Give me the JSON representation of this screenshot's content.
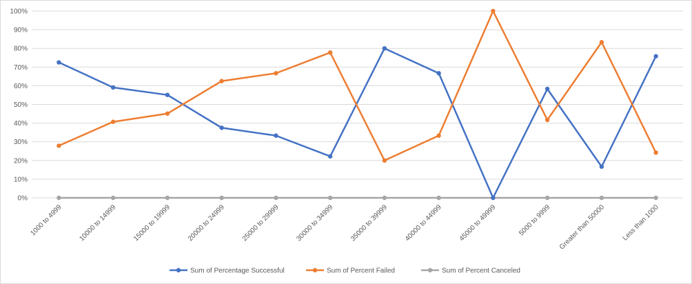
{
  "chart_data": {
    "type": "line",
    "categories": [
      "1000 to 4999",
      "10000 to 14999",
      "15000 to 19999",
      "20000 to 24999",
      "25000 to 29999",
      "30000 to 34999",
      "35000 to 39999",
      "40000 to 44999",
      "45000 to 49999",
      "5000 to 9999",
      "Greater than 50000",
      "Less than 1000"
    ],
    "series": [
      {
        "name": "Sum of Percentage Successful",
        "color": "#4472c4",
        "values": [
          72.5,
          59.1,
          55.1,
          37.5,
          33.3,
          22.2,
          80.0,
          66.7,
          0.0,
          58.3,
          16.7,
          75.8
        ]
      },
      {
        "name": "Sum of Percent Failed",
        "color": "#ed7d31",
        "values": [
          27.9,
          40.7,
          45.1,
          62.5,
          66.7,
          77.8,
          20.0,
          33.3,
          100.0,
          41.7,
          83.3,
          24.2
        ]
      },
      {
        "name": "Sum of Percent Canceled",
        "color": "#a5a5a5",
        "values": [
          0,
          0,
          0,
          0,
          0,
          0,
          0,
          0,
          0,
          0,
          0,
          0
        ]
      }
    ],
    "y_ticks": [
      "0%",
      "10%",
      "20%",
      "30%",
      "40%",
      "50%",
      "60%",
      "70%",
      "80%",
      "90%",
      "100%"
    ],
    "ylim": [
      0,
      100
    ],
    "grid": true,
    "legend_position": "bottom"
  }
}
